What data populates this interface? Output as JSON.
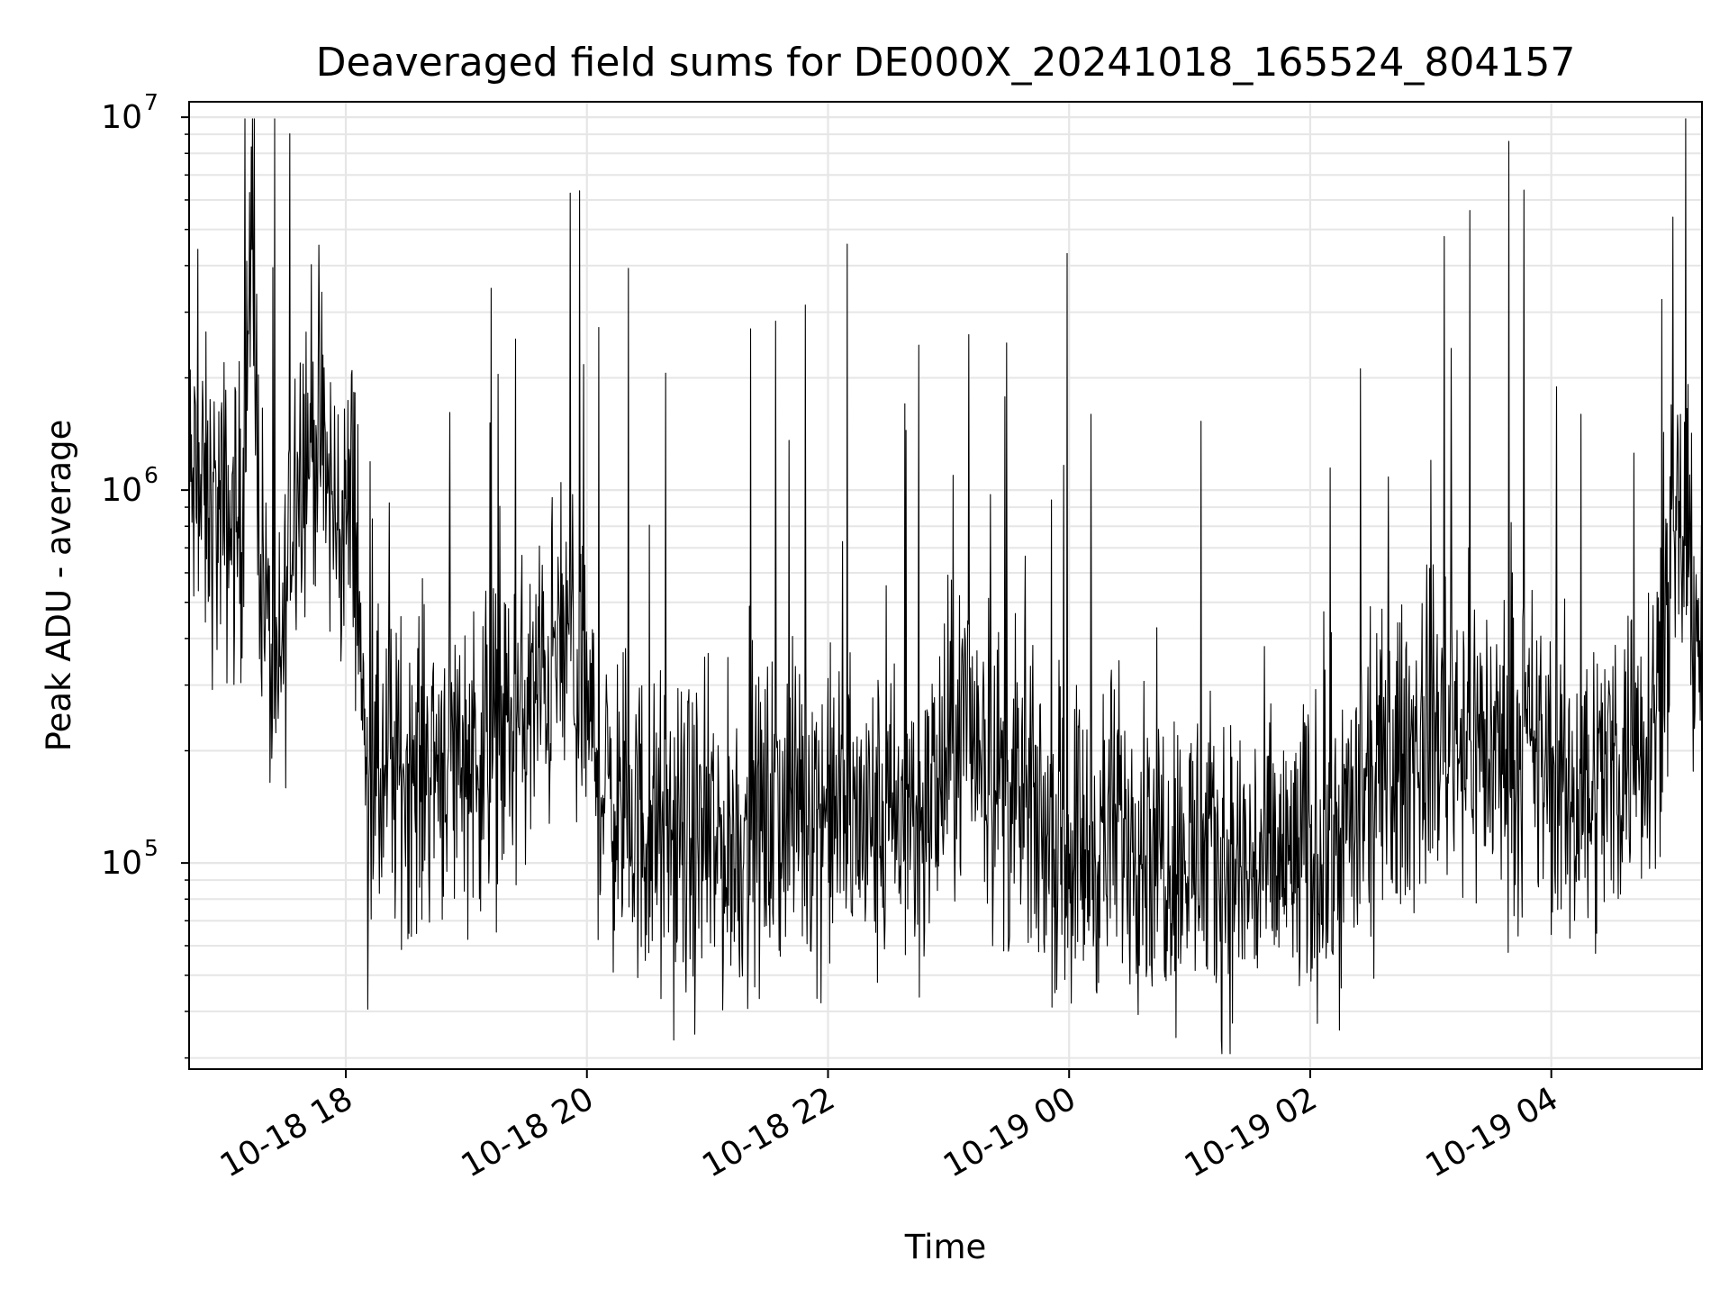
{
  "chart_data": {
    "type": "line",
    "title": "Deaveraged field sums for DE000X_20241018_165524_804157",
    "xlabel": "Time",
    "ylabel": "Peak ADU - average",
    "yscale": "log",
    "xlim": [
      "2024-10-18 16:42",
      "2024-10-19 05:15"
    ],
    "ylim": [
      28000,
      11000000
    ],
    "grid": true,
    "x_ticks": [
      {
        "t": "2024-10-18 18:00",
        "label": "10-18 18"
      },
      {
        "t": "2024-10-18 20:00",
        "label": "10-18 20"
      },
      {
        "t": "2024-10-18 22:00",
        "label": "10-18 22"
      },
      {
        "t": "2024-10-19 00:00",
        "label": "10-19 00"
      },
      {
        "t": "2024-10-19 02:00",
        "label": "10-19 02"
      },
      {
        "t": "2024-10-19 04:00",
        "label": "10-19 04"
      }
    ],
    "y_ticks": [
      {
        "v": 100000,
        "base": "10",
        "exp": "5"
      },
      {
        "v": 1000000,
        "base": "10",
        "exp": "6"
      },
      {
        "v": 10000000,
        "base": "10",
        "exp": "7"
      }
    ],
    "series": [
      {
        "color": "#000000",
        "x": [
          "2024-10-18 16:42",
          "2024-10-18 16:55",
          "2024-10-18 17:08",
          "2024-10-18 17:13",
          "2024-10-18 17:17",
          "2024-10-18 17:21",
          "2024-10-18 17:26",
          "2024-10-18 17:35",
          "2024-10-18 17:45",
          "2024-10-18 17:55",
          "2024-10-18 18:05",
          "2024-10-18 18:10",
          "2024-10-18 18:30",
          "2024-10-18 18:50",
          "2024-10-18 19:10",
          "2024-10-18 19:30",
          "2024-10-18 19:50",
          "2024-10-18 20:10",
          "2024-10-18 20:30",
          "2024-10-18 20:50",
          "2024-10-18 21:10",
          "2024-10-18 21:30",
          "2024-10-18 21:50",
          "2024-10-18 22:10",
          "2024-10-18 22:30",
          "2024-10-18 22:50",
          "2024-10-18 23:10",
          "2024-10-18 23:30",
          "2024-10-18 23:50",
          "2024-10-19 00:10",
          "2024-10-19 00:30",
          "2024-10-19 00:50",
          "2024-10-19 01:10",
          "2024-10-19 01:30",
          "2024-10-19 01:50",
          "2024-10-19 02:10",
          "2024-10-19 02:30",
          "2024-10-19 02:50",
          "2024-10-19 03:10",
          "2024-10-19 03:30",
          "2024-10-19 03:50",
          "2024-10-19 04:10",
          "2024-10-19 04:30",
          "2024-10-19 04:50",
          "2024-10-19 05:05",
          "2024-10-19 05:15"
        ],
        "y": [
          1000000,
          850000,
          800000,
          4300000,
          900000,
          400000,
          250000,
          1200000,
          1500000,
          800000,
          900000,
          150000,
          180000,
          200000,
          200000,
          250000,
          400000,
          150000,
          120000,
          110000,
          110000,
          130000,
          150000,
          130000,
          120000,
          140000,
          250000,
          150000,
          120000,
          110000,
          130000,
          110000,
          100000,
          95000,
          100000,
          110000,
          150000,
          200000,
          250000,
          200000,
          200000,
          150000,
          180000,
          250000,
          800000,
          400000
        ]
      }
    ]
  }
}
